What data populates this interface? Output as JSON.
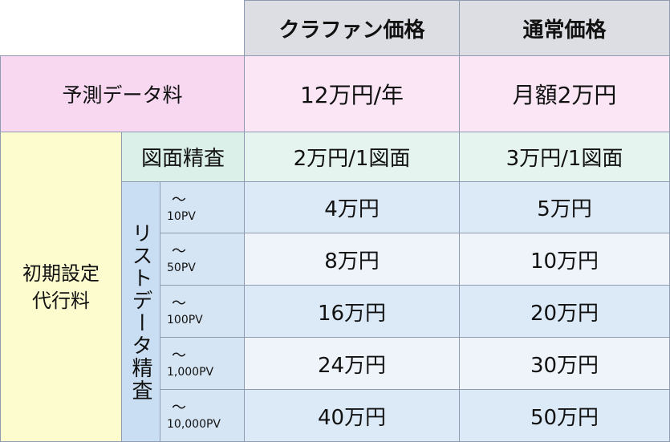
{
  "header": {
    "col1": "クラファン価格",
    "col2": "通常価格"
  },
  "forecast": {
    "label": "予測データ料",
    "crowdfund": "12万円/年",
    "regular": "月額2万円"
  },
  "setup": {
    "label_line1": "初期設定",
    "label_line2": "代行料",
    "drawing": {
      "label": "図面精査",
      "crowdfund": "2万円/1図面",
      "regular": "3万円/1図面"
    },
    "list": {
      "label": "リストデータ精査",
      "rows": [
        {
          "tilde": "～",
          "range": "10PV",
          "crowdfund": "4万円",
          "regular": "5万円"
        },
        {
          "tilde": "～",
          "range": "50PV",
          "crowdfund": "8万円",
          "regular": "10万円"
        },
        {
          "tilde": "～",
          "range": "100PV",
          "crowdfund": "16万円",
          "regular": "20万円"
        },
        {
          "tilde": "～",
          "range": "1,000PV",
          "crowdfund": "24万円",
          "regular": "30万円"
        },
        {
          "tilde": "～",
          "range": "10,000PV",
          "crowdfund": "40万円",
          "regular": "50万円"
        }
      ]
    }
  }
}
